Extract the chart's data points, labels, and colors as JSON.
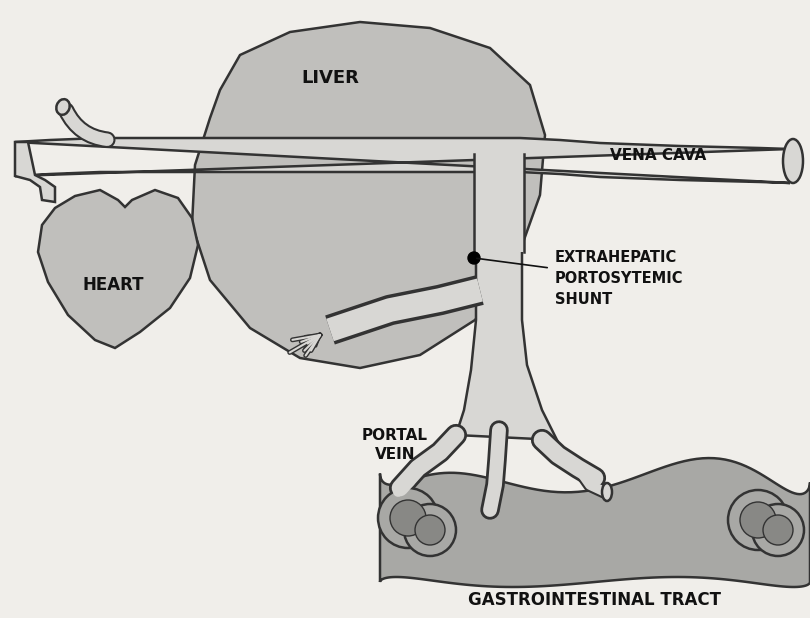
{
  "bg_color": "#f0eeea",
  "organ_fill": "#c0bfbc",
  "organ_edge": "#333333",
  "vessel_fill": "#d8d7d4",
  "vessel_edge": "#333333",
  "gi_fill": "#a8a8a5",
  "gi_dark": "#888885",
  "text_color": "#111111",
  "labels": {
    "liver": "LIVER",
    "heart": "HEART",
    "vena_cava": "VENA CAVA",
    "shunt": "EXTRAHEPATIC\nPORTOSYTEMIC\nSHUNT",
    "portal_vein": "PORTAL\nVEIN",
    "gi_tract": "GASTROINTESTINAL TRACT"
  },
  "figsize": [
    8.1,
    6.18
  ],
  "dpi": 100
}
